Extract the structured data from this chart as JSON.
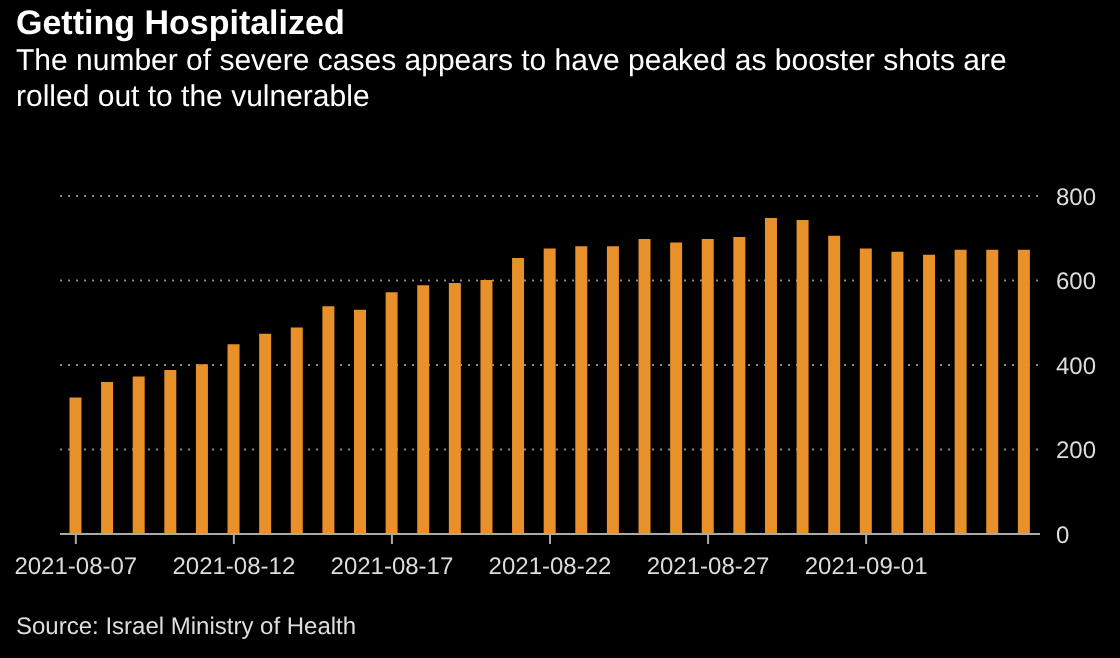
{
  "chart_data": {
    "type": "bar",
    "title": "Getting Hospitalized",
    "subtitle": "The number of severe cases appears to have peaked as booster shots are rolled out to the vulnerable",
    "categories": [
      "2021-08-07",
      null,
      null,
      null,
      null,
      "2021-08-12",
      null,
      null,
      null,
      null,
      "2021-08-17",
      null,
      null,
      null,
      null,
      "2021-08-22",
      null,
      null,
      null,
      null,
      "2021-08-27",
      null,
      null,
      null,
      null,
      "2021-09-01",
      null,
      null,
      null,
      null,
      null
    ],
    "values": [
      323,
      360,
      373,
      388,
      402,
      449,
      474,
      489,
      539,
      531,
      572,
      589,
      594,
      601,
      653,
      676,
      681,
      681,
      698,
      690,
      698,
      703,
      748,
      743,
      706,
      676,
      668,
      661,
      673,
      673,
      673
    ],
    "color": "#e8912a",
    "ylim": [
      0,
      800
    ],
    "yticks": [
      0,
      200,
      400,
      600,
      800
    ],
    "grid": "y",
    "annotations": [
      "Source: Israel Ministry of Health"
    ]
  }
}
